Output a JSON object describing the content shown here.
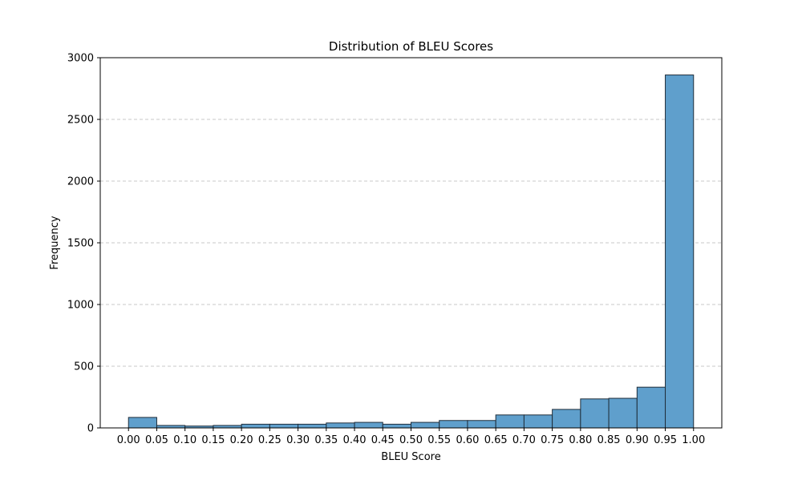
{
  "chart_data": {
    "type": "bar",
    "title": "Distribution of BLEU Scores",
    "xlabel": "BLEU Score",
    "ylabel": "Frequency",
    "bin_edges": [
      0.0,
      0.05,
      0.1,
      0.15,
      0.2,
      0.25,
      0.3,
      0.35,
      0.4,
      0.45,
      0.5,
      0.55,
      0.6,
      0.65,
      0.7,
      0.75,
      0.8,
      0.85,
      0.9,
      0.95,
      1.0
    ],
    "values": [
      85,
      20,
      15,
      20,
      30,
      30,
      30,
      40,
      45,
      30,
      45,
      60,
      60,
      105,
      105,
      150,
      235,
      240,
      330,
      2860
    ],
    "xlim": [
      -0.05,
      1.05
    ],
    "ylim": [
      0,
      3000
    ],
    "x_tick_labels": [
      "0.00",
      "0.05",
      "0.10",
      "0.15",
      "0.20",
      "0.25",
      "0.30",
      "0.35",
      "0.40",
      "0.45",
      "0.50",
      "0.55",
      "0.60",
      "0.65",
      "0.70",
      "0.75",
      "0.80",
      "0.85",
      "0.90",
      "0.95",
      "1.00"
    ],
    "y_ticks": [
      0,
      500,
      1000,
      1500,
      2000,
      2500,
      3000
    ],
    "y_tick_labels": [
      "0",
      "500",
      "1000",
      "1500",
      "2000",
      "2500",
      "3000"
    ],
    "grid": "y-dashed",
    "bar_color": "#5f9fcc",
    "bar_edge_color": "#1f2d3a",
    "grid_color": "#c8c8c8"
  }
}
